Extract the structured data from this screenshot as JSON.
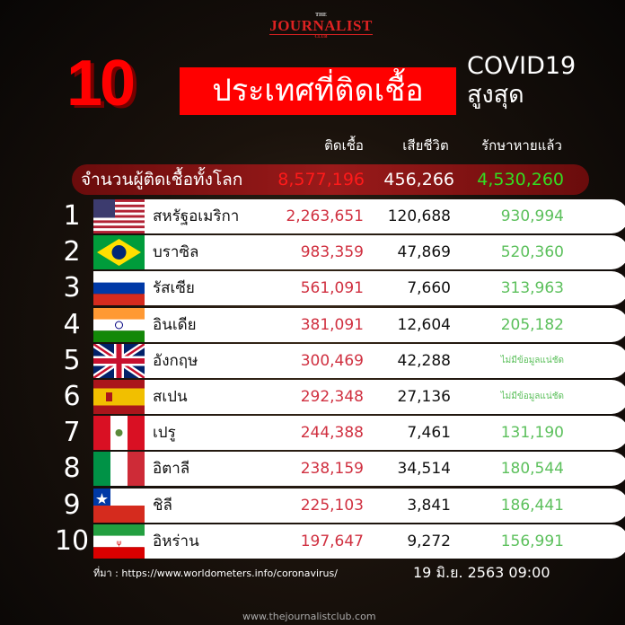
{
  "logo": {
    "the": "THE",
    "main": "JOURNALIST",
    "club": "CLUB"
  },
  "title": {
    "number": "10",
    "main": "ประเทศที่ติดเชื้อ",
    "covid": "COVID19",
    "highest": "สูงสุด"
  },
  "headers": {
    "infected": "ติดเชื้อ",
    "deaths": "เสียชีวิต",
    "recovered": "รักษาหายแล้ว"
  },
  "world": {
    "label": "จำนวนผู้ติดเชื้อทั้งโลก",
    "infected": "8,577,196",
    "deaths": "456,266",
    "recovered": "4,530,260"
  },
  "rows": [
    {
      "rank": "1",
      "flag": "usa-flag",
      "country": "สหรัฐอเมริกา",
      "infected": "2,263,651",
      "deaths": "120,688",
      "recovered": "930,994"
    },
    {
      "rank": "2",
      "flag": "brazil-flag",
      "country": "บราซิล",
      "infected": "983,359",
      "deaths": "47,869",
      "recovered": "520,360"
    },
    {
      "rank": "3",
      "flag": "russia-flag",
      "country": "รัสเซีย",
      "infected": "561,091",
      "deaths": "7,660",
      "recovered": "313,963"
    },
    {
      "rank": "4",
      "flag": "india-flag",
      "country": "อินเดีย",
      "infected": "381,091",
      "deaths": "12,604",
      "recovered": "205,182"
    },
    {
      "rank": "5",
      "flag": "uk-flag",
      "country": "อังกฤษ",
      "infected": "300,469",
      "deaths": "42,288",
      "recovered": "ไม่มีข้อมูลแน่ชัด"
    },
    {
      "rank": "6",
      "flag": "spain-flag",
      "country": "สเปน",
      "infected": "292,348",
      "deaths": "27,136",
      "recovered": "ไม่มีข้อมูลแน่ชัด"
    },
    {
      "rank": "7",
      "flag": "peru-flag",
      "country": "เปรู",
      "infected": "244,388",
      "deaths": "7,461",
      "recovered": "131,190"
    },
    {
      "rank": "8",
      "flag": "italy-flag",
      "country": "อิตาลี",
      "infected": "238,159",
      "deaths": "34,514",
      "recovered": "180,544"
    },
    {
      "rank": "9",
      "flag": "chile-flag",
      "country": "ชิลี",
      "infected": "225,103",
      "deaths": "3,841",
      "recovered": "186,441"
    },
    {
      "rank": "10",
      "flag": "iran-flag",
      "country": "อิหร่าน",
      "infected": "197,647",
      "deaths": "9,272",
      "recovered": "156,991"
    }
  ],
  "footer": {
    "source": "ที่มา : https://www.worldometers.info/coronavirus/",
    "date": "19 มิ.ย. 2563 09:00",
    "site": "www.thejournalistclub.com"
  },
  "colors": {
    "title_red": "#ff0000",
    "infected": "#d03040",
    "recovered": "#5cc05c",
    "world_green": "#33dd22"
  }
}
